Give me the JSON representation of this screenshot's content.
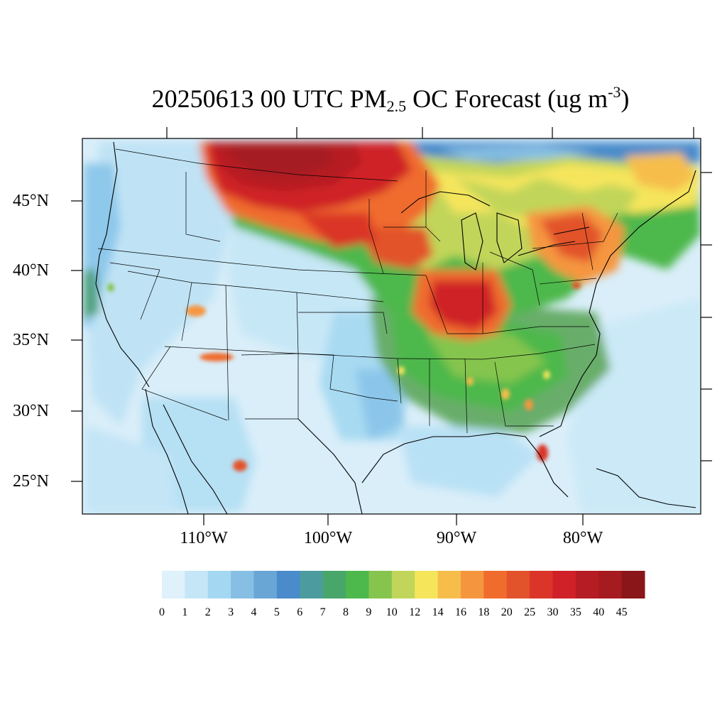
{
  "title": {
    "prefix": "20250613 00 UTC PM",
    "sub": "2.5",
    "middle": " OC Forecast (ug m",
    "sup": "-3",
    "suffix": ")"
  },
  "map": {
    "lon_range": [
      -120.0,
      -71.0
    ],
    "lat_range": [
      22.8,
      49.4
    ],
    "lat_ticks": [
      {
        "value": 45,
        "label": "45°N"
      },
      {
        "value": 40,
        "label": "40°N"
      },
      {
        "value": 35,
        "label": "35°N"
      },
      {
        "value": 30,
        "label": "30°N"
      },
      {
        "value": 25,
        "label": "25°N"
      }
    ],
    "lon_ticks": [
      {
        "value": -110,
        "label": "110°W"
      },
      {
        "value": -100,
        "label": "100°W"
      },
      {
        "value": -90,
        "label": "90°W"
      },
      {
        "value": -80,
        "label": "80°W"
      }
    ],
    "field_description": "PM2.5 organic carbon concentration; highest (35–45+) over northern plains / Montana–Dakotas smoke plume and Illinois–Indiana, elevated (10–25) across Great Lakes, Northeast and Southeast, low (0–4) over West and Gulf."
  },
  "colorbar": {
    "labels": [
      "0",
      "1",
      "2",
      "3",
      "4",
      "5",
      "6",
      "7",
      "8",
      "9",
      "10",
      "12",
      "14",
      "16",
      "18",
      "20",
      "25",
      "30",
      "35",
      "40",
      "45"
    ],
    "colors": [
      "#dff1fa",
      "#c4e6f6",
      "#a4d8f2",
      "#86bfe3",
      "#69a6d6",
      "#4a8bcb",
      "#4c9c9f",
      "#48a66b",
      "#4db84b",
      "#85c54e",
      "#c1d55a",
      "#f5e55b",
      "#f6bd4b",
      "#f5963f",
      "#f06c2d",
      "#e2522b",
      "#da3528",
      "#cf2127",
      "#b61c23",
      "#a51b20",
      "#8a1619"
    ]
  }
}
